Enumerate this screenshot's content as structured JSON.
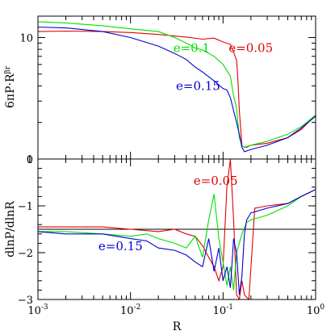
{
  "chart_data": [
    {
      "type": "line",
      "ylabel": "6πP·R",
      "ylabel_exponent": "βr",
      "yscale": "log",
      "xscale": "log",
      "xlim": [
        0.001,
        1
      ],
      "ylim": [
        1,
        15
      ],
      "yticks": [
        {
          "value": 1,
          "label": "1"
        },
        {
          "value": 10,
          "label": "10"
        }
      ],
      "grid": false,
      "annotations": [
        {
          "text": "e=0.1",
          "color": "#00e000",
          "series": "e=0.1"
        },
        {
          "text": "e=0.05",
          "color": "#e00000",
          "series": "e=0.05"
        },
        {
          "text": "e=0.15",
          "color": "#0000d0",
          "series": "e=0.15"
        }
      ],
      "series": [
        {
          "name": "e=0.05",
          "color": "#e00000",
          "x": [
            0.001,
            0.002,
            0.005,
            0.01,
            0.02,
            0.04,
            0.06,
            0.08,
            0.1,
            0.12,
            0.13,
            0.14,
            0.145,
            0.15,
            0.16,
            0.17,
            0.18,
            0.2,
            0.3,
            0.5,
            0.7,
            1.0
          ],
          "y": [
            11.2,
            11.3,
            11.2,
            11.0,
            10.6,
            10.1,
            9.7,
            9.9,
            9.2,
            8.8,
            7.6,
            6.5,
            4.4,
            2.5,
            1.3,
            1.25,
            1.25,
            1.3,
            1.35,
            1.5,
            1.75,
            2.3
          ]
        },
        {
          "name": "e=0.1",
          "color": "#00e000",
          "x": [
            0.001,
            0.002,
            0.005,
            0.01,
            0.02,
            0.03,
            0.04,
            0.05,
            0.06,
            0.08,
            0.1,
            0.12,
            0.13,
            0.14,
            0.15,
            0.16,
            0.17,
            0.2,
            0.3,
            0.5,
            0.7,
            1.0
          ],
          "y": [
            13.5,
            13.2,
            12.5,
            11.8,
            11.2,
            10.0,
            9.0,
            8.2,
            7.9,
            7.0,
            6.0,
            4.8,
            3.3,
            2.6,
            1.5,
            1.3,
            1.25,
            1.3,
            1.4,
            1.6,
            1.85,
            2.3
          ]
        },
        {
          "name": "e=0.15",
          "color": "#0000d0",
          "x": [
            0.001,
            0.002,
            0.005,
            0.01,
            0.02,
            0.03,
            0.04,
            0.05,
            0.06,
            0.08,
            0.1,
            0.11,
            0.12,
            0.13,
            0.14,
            0.15,
            0.16,
            0.17,
            0.2,
            0.3,
            0.5,
            0.7,
            1.0
          ],
          "y": [
            12.2,
            12.0,
            11.2,
            10.0,
            8.5,
            7.4,
            6.6,
            5.7,
            5.2,
            4.4,
            3.8,
            3.7,
            3.2,
            2.5,
            2.0,
            1.6,
            1.25,
            1.15,
            1.2,
            1.3,
            1.5,
            1.8,
            2.25
          ]
        }
      ]
    },
    {
      "type": "line",
      "xlabel": "R",
      "ylabel": "dlnP/dlnR",
      "xscale": "log",
      "xlim": [
        0.001,
        1
      ],
      "ylim": [
        -3,
        0
      ],
      "xticks": [
        {
          "value": 0.001,
          "base": "10",
          "exp": "-3"
        },
        {
          "value": 0.01,
          "base": "10",
          "exp": "-2"
        },
        {
          "value": 0.1,
          "base": "10",
          "exp": "-1"
        },
        {
          "value": 1,
          "base": "10",
          "exp": "0"
        }
      ],
      "yticks": [
        {
          "value": -3,
          "label": "−3"
        },
        {
          "value": -2,
          "label": "−2"
        },
        {
          "value": -1,
          "label": "−1"
        },
        {
          "value": 0,
          "label": "0"
        }
      ],
      "reference_line": -1.5,
      "grid": false,
      "annotations": [
        {
          "text": "e=0.05",
          "color": "#e00000",
          "series": "e=0.05"
        },
        {
          "text": "e=0.15",
          "color": "#0000d0",
          "series": "e=0.15"
        }
      ],
      "series": [
        {
          "name": "e=0.05",
          "color": "#e00000",
          "x": [
            0.001,
            0.002,
            0.005,
            0.01,
            0.02,
            0.03,
            0.04,
            0.05,
            0.06,
            0.07,
            0.08,
            0.09,
            0.1,
            0.11,
            0.12,
            0.13,
            0.14,
            0.15,
            0.16,
            0.17,
            0.19,
            0.22,
            0.3,
            0.5,
            0.7,
            1.0
          ],
          "y": [
            -1.45,
            -1.45,
            -1.45,
            -1.5,
            -1.55,
            -1.5,
            -1.6,
            -1.65,
            -1.85,
            -2.1,
            -2.3,
            -2.6,
            -2.3,
            -0.6,
            0.0,
            -1.3,
            -2.9,
            -3.0,
            -2.6,
            -2.9,
            -3.0,
            -1.05,
            -1.0,
            -0.95,
            -0.8,
            -0.65
          ]
        },
        {
          "name": "e=0.1",
          "color": "#00e000",
          "x": [
            0.001,
            0.002,
            0.005,
            0.01,
            0.015,
            0.02,
            0.03,
            0.04,
            0.05,
            0.06,
            0.07,
            0.08,
            0.09,
            0.1,
            0.11,
            0.12,
            0.13,
            0.14,
            0.15,
            0.16,
            0.18,
            0.2,
            0.3,
            0.5,
            0.7,
            1.0
          ],
          "y": [
            -1.55,
            -1.55,
            -1.6,
            -1.65,
            -1.6,
            -1.7,
            -1.8,
            -1.9,
            -1.65,
            -2.1,
            -1.3,
            -0.75,
            -1.7,
            -2.2,
            -2.7,
            -2.3,
            -2.8,
            -2.0,
            -1.8,
            -1.6,
            -1.35,
            -1.3,
            -1.2,
            -1.0,
            -0.8,
            -0.65
          ]
        },
        {
          "name": "e=0.15",
          "color": "#0000d0",
          "x": [
            0.001,
            0.002,
            0.005,
            0.01,
            0.015,
            0.02,
            0.03,
            0.04,
            0.05,
            0.06,
            0.07,
            0.08,
            0.09,
            0.1,
            0.11,
            0.12,
            0.13,
            0.14,
            0.15,
            0.16,
            0.17,
            0.18,
            0.2,
            0.3,
            0.5,
            0.7,
            1.0
          ],
          "y": [
            -1.55,
            -1.6,
            -1.6,
            -1.7,
            -1.75,
            -1.9,
            -1.95,
            -2.05,
            -2.2,
            -2.3,
            -1.7,
            -2.4,
            -1.9,
            -2.6,
            -2.3,
            -2.75,
            -1.7,
            -2.0,
            -2.9,
            -2.5,
            -1.6,
            -1.3,
            -1.15,
            -1.05,
            -0.95,
            -0.8,
            -0.65
          ]
        }
      ]
    }
  ]
}
